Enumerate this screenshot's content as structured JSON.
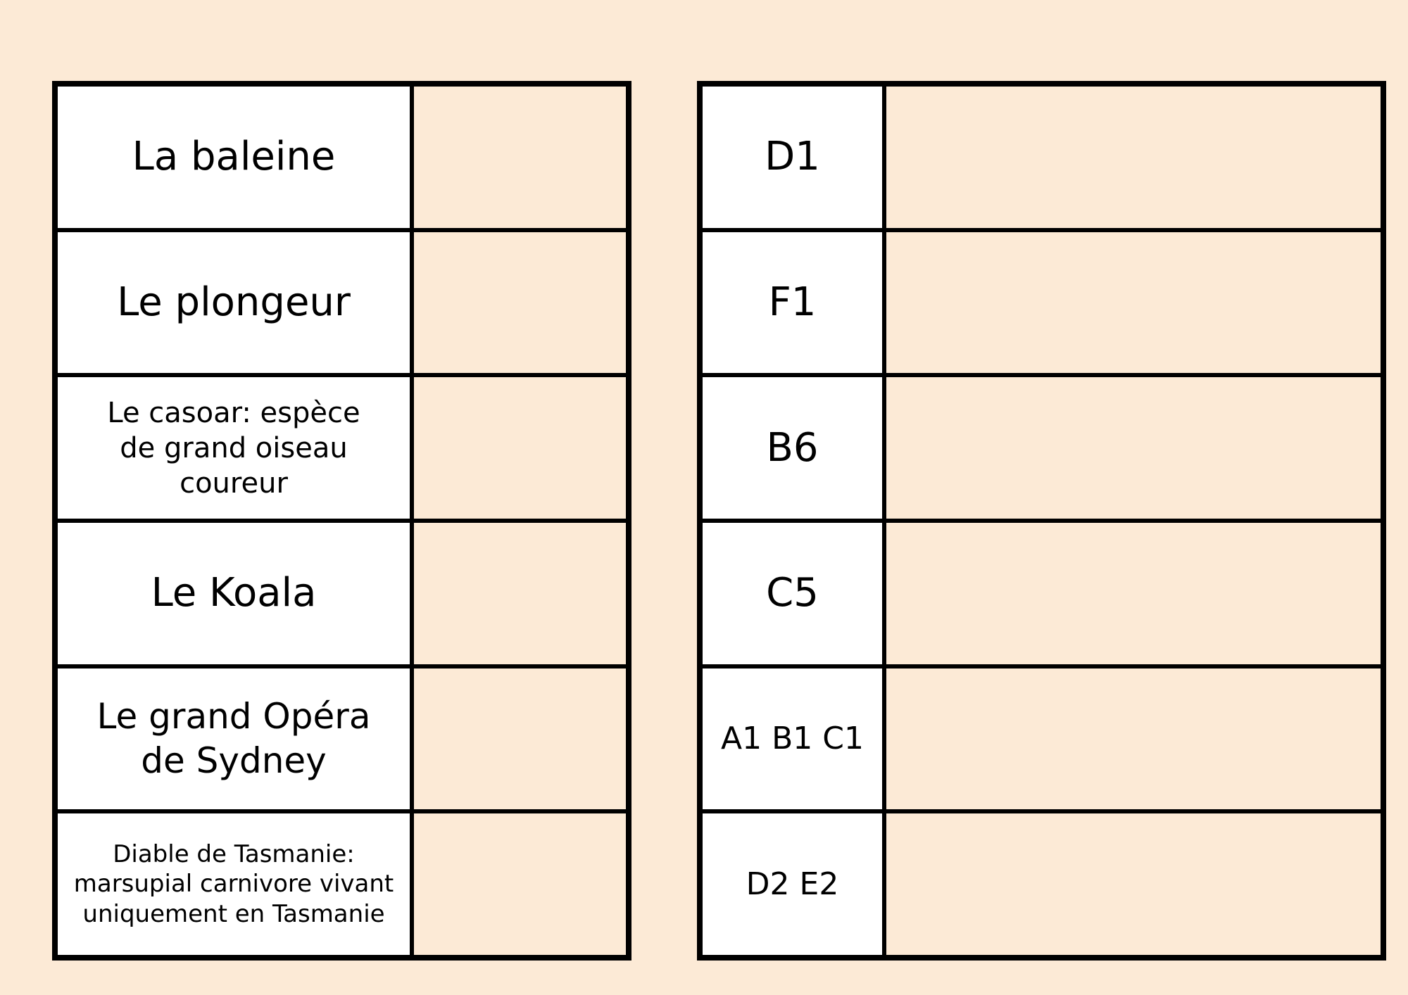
{
  "page": {
    "background_color": "#fcead6",
    "label_cell_color": "#ffffff",
    "border_color": "#000000",
    "text_color": "#000000"
  },
  "clues_table": {
    "rows": [
      {
        "label": "La baleine"
      },
      {
        "label": "Le plongeur"
      },
      {
        "label": "Le casoar: espèce\nde grand oiseau\ncoureur"
      },
      {
        "label": "Le Koala"
      },
      {
        "label": "Le grand Opéra\nde Sydney"
      },
      {
        "label": "Diable de Tasmanie:\nmarsupial carnivore vivant\nuniquement en Tasmanie"
      }
    ]
  },
  "codes_table": {
    "rows": [
      {
        "label": "D1"
      },
      {
        "label": "F1"
      },
      {
        "label": "B6"
      },
      {
        "label": "C5"
      },
      {
        "label": "A1 B1 C1"
      },
      {
        "label": "D2 E2"
      }
    ]
  }
}
